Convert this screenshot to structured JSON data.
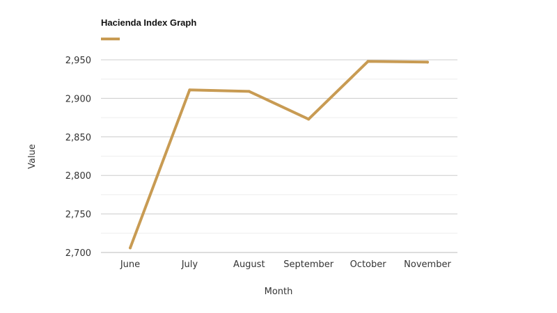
{
  "chart_data": {
    "type": "line",
    "title": "Hacienda Index Graph",
    "xlabel": "Month",
    "ylabel": "Value",
    "categories": [
      "June",
      "July",
      "August",
      "September",
      "October",
      "November"
    ],
    "series": [
      {
        "name": "",
        "values": [
          2706,
          2911,
          2909,
          2873,
          2948,
          2947
        ]
      }
    ],
    "ylim": [
      2700,
      2950
    ],
    "yticks": [
      2700,
      2750,
      2800,
      2850,
      2900,
      2950
    ],
    "ytick_labels": [
      "2,700",
      "2,750",
      "2,800",
      "2,850",
      "2,900",
      "2,950"
    ],
    "grid": true,
    "legend": "top-left",
    "colors": {
      "series": "#c89b53",
      "grid_major": "#cccccc",
      "grid_minor": "#eeeeee",
      "axis": "#bbbbbb"
    }
  }
}
